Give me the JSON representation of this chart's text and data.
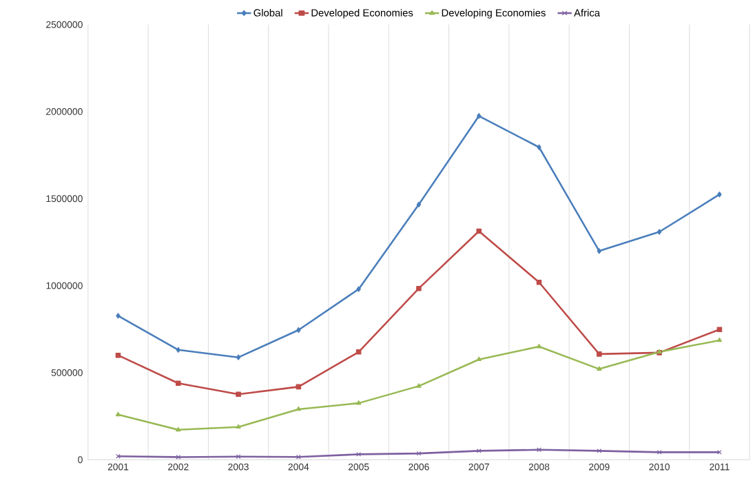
{
  "chart_data": {
    "type": "line",
    "categories": [
      "2001",
      "2002",
      "2003",
      "2004",
      "2005",
      "2006",
      "2007",
      "2008",
      "2009",
      "2010",
      "2011"
    ],
    "series": [
      {
        "name": "Global",
        "color": "#4a7ebb",
        "marker": "diamond",
        "values": [
          827000,
          631000,
          588000,
          745000,
          980000,
          1466000,
          1975000,
          1795000,
          1199000,
          1309000,
          1524000
        ]
      },
      {
        "name": "Developed Economies",
        "color": "#be4b48",
        "marker": "square",
        "values": [
          600000,
          439000,
          376000,
          419000,
          619000,
          984000,
          1313000,
          1019000,
          607000,
          615000,
          748000
        ]
      },
      {
        "name": "Developing Economies",
        "color": "#98b954",
        "marker": "triangle",
        "values": [
          259000,
          172000,
          188000,
          290000,
          325000,
          423000,
          576000,
          650000,
          521000,
          619000,
          686000
        ]
      },
      {
        "name": "Africa",
        "color": "#7d60a0",
        "marker": "cross",
        "values": [
          20000,
          15000,
          18000,
          16000,
          31000,
          36000,
          51000,
          57000,
          51000,
          43000,
          43000
        ]
      }
    ],
    "ylim": [
      0,
      2500000
    ],
    "yticks": [
      0,
      500000,
      1000000,
      1500000,
      2000000,
      2500000
    ],
    "grid": "x",
    "legend": "top",
    "line_style": "solid"
  }
}
